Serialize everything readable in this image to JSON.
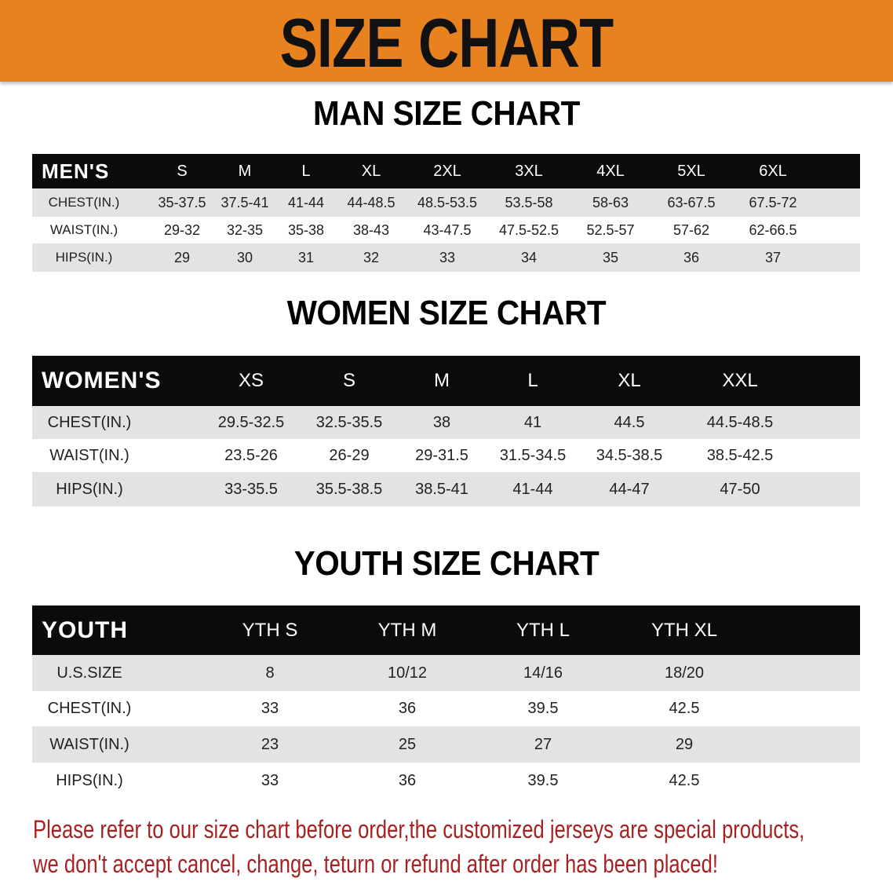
{
  "banner": {
    "title": "SIZE CHART",
    "color": "#e8821f"
  },
  "men": {
    "title": "MAN SIZE CHART",
    "header": [
      "MEN'S",
      "S",
      "M",
      "L",
      "XL",
      "2XL",
      "3XL",
      "4XL",
      "5XL",
      "6XL"
    ],
    "rows": [
      [
        "CHEST(IN.)",
        "35-37.5",
        "37.5-41",
        "41-44",
        "44-48.5",
        "48.5-53.5",
        "53.5-58",
        "58-63",
        "63-67.5",
        "67.5-72"
      ],
      [
        "WAIST(IN.)",
        "29-32",
        "32-35",
        "35-38",
        "38-43",
        "43-47.5",
        "47.5-52.5",
        "52.5-57",
        "57-62",
        "62-66.5"
      ],
      [
        "HIPS(IN.)",
        "29",
        "30",
        "31",
        "32",
        "33",
        "34",
        "35",
        "36",
        "37"
      ]
    ]
  },
  "women": {
    "title": "WOMEN SIZE CHART",
    "header": [
      "WOMEN'S",
      "XS",
      "S",
      "M",
      "L",
      "XL",
      "XXL"
    ],
    "rows": [
      [
        "CHEST(IN.)",
        "29.5-32.5",
        "32.5-35.5",
        "38",
        "41",
        "44.5",
        "44.5-48.5"
      ],
      [
        "WAIST(IN.)",
        "23.5-26",
        "26-29",
        "29-31.5",
        "31.5-34.5",
        "34.5-38.5",
        "38.5-42.5"
      ],
      [
        "HIPS(IN.)",
        "33-35.5",
        "35.5-38.5",
        "38.5-41",
        "41-44",
        "44-47",
        "47-50"
      ]
    ]
  },
  "youth": {
    "title": "YOUTH SIZE CHART",
    "header": [
      "YOUTH",
      "YTH S",
      "YTH M",
      "YTH L",
      "YTH XL"
    ],
    "rows": [
      [
        "U.S.SIZE",
        "8",
        "10/12",
        "14/16",
        "18/20"
      ],
      [
        "CHEST(IN.)",
        "33",
        "36",
        "39.5",
        "42.5"
      ],
      [
        "WAIST(IN.)",
        "23",
        "25",
        "27",
        "29"
      ],
      [
        "HIPS(IN.)",
        "33",
        "36",
        "39.5",
        "42.5"
      ]
    ]
  },
  "note": {
    "line1": "Please refer to our size chart before order,the customized jerseys are special products,",
    "line2": "we don't accept cancel, change, teturn or refund after order has been placed!",
    "color": "#a62222"
  }
}
